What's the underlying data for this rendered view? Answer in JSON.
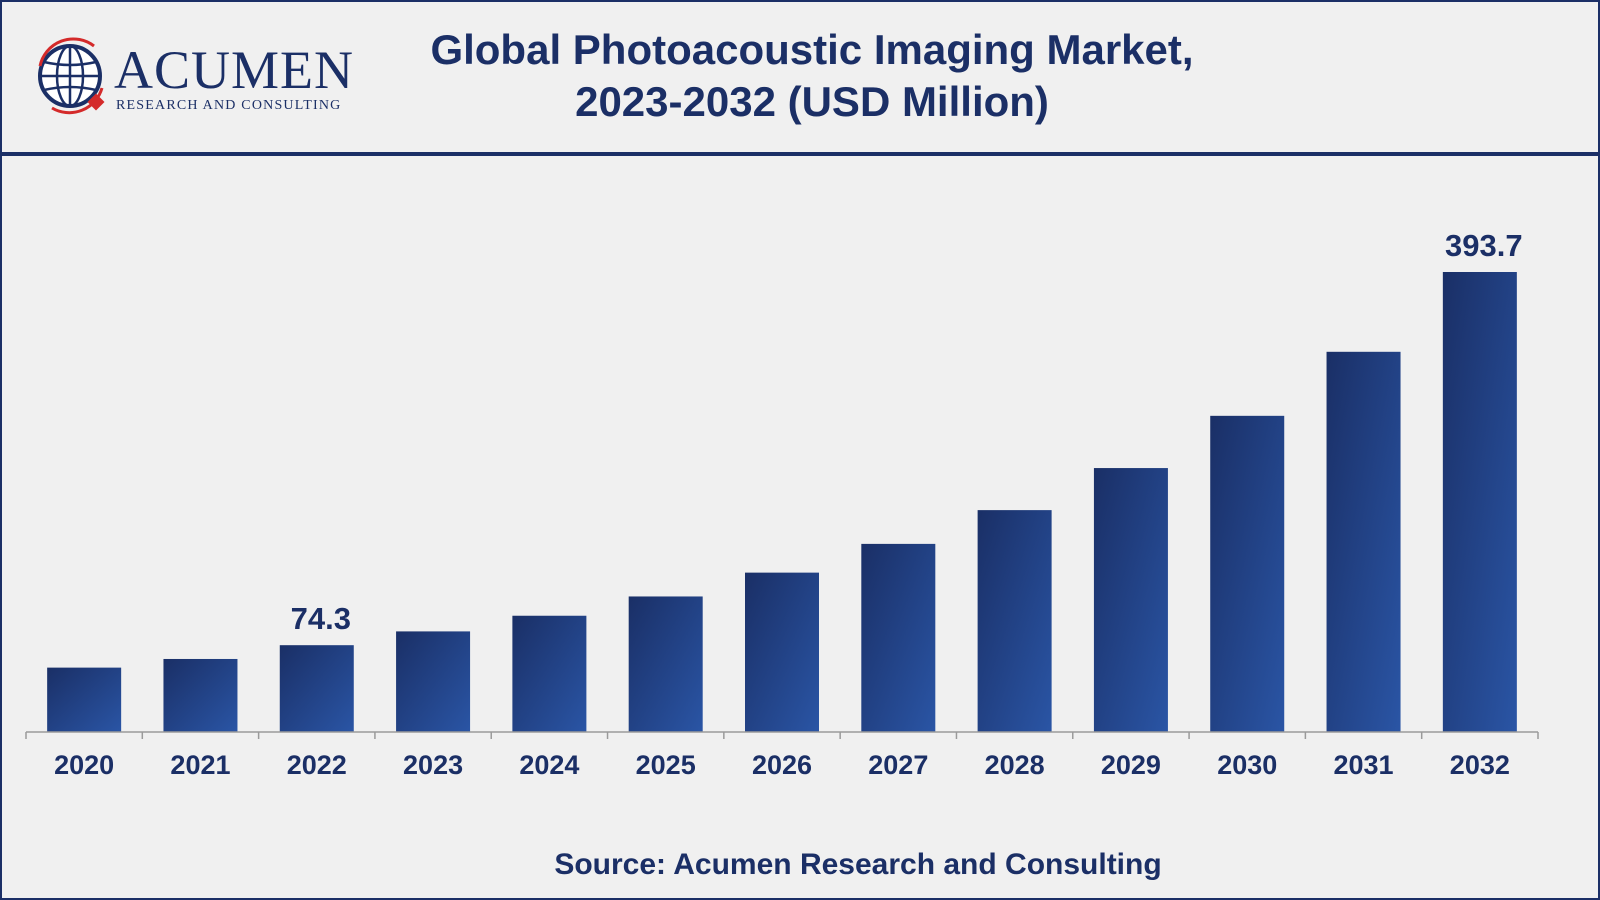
{
  "header": {
    "logo_word": "ACUMEN",
    "logo_sub": "RESEARCH AND CONSULTING",
    "title_line1": "Global Photoacoustic Imaging Market,",
    "title_line2": "2023-2032 (USD Million)"
  },
  "footer": {
    "source": "Source: Acumen Research and Consulting"
  },
  "colors": {
    "brand": "#1b2f66",
    "bar_dark": "#1a2f66",
    "bar_light": "#2a55a5",
    "background": "#f0f0f0",
    "logo_accent": "#d42a2a"
  },
  "chart_data": {
    "type": "bar",
    "title": "Global Photoacoustic Imaging Market, 2023-2032 (USD Million)",
    "xlabel": "",
    "ylabel": "",
    "categories": [
      "2020",
      "2021",
      "2022",
      "2023",
      "2024",
      "2025",
      "2026",
      "2027",
      "2028",
      "2029",
      "2030",
      "2031",
      "2032"
    ],
    "values": [
      55.1,
      62.5,
      74.3,
      86.1,
      99.5,
      116.0,
      136.4,
      161.0,
      189.9,
      225.9,
      270.6,
      325.4,
      393.7
    ],
    "data_labels": [
      null,
      null,
      "74.3",
      null,
      null,
      null,
      null,
      null,
      null,
      null,
      null,
      null,
      "393.7"
    ],
    "ylim": [
      0,
      393.7
    ],
    "grid": false,
    "legend": "none"
  }
}
